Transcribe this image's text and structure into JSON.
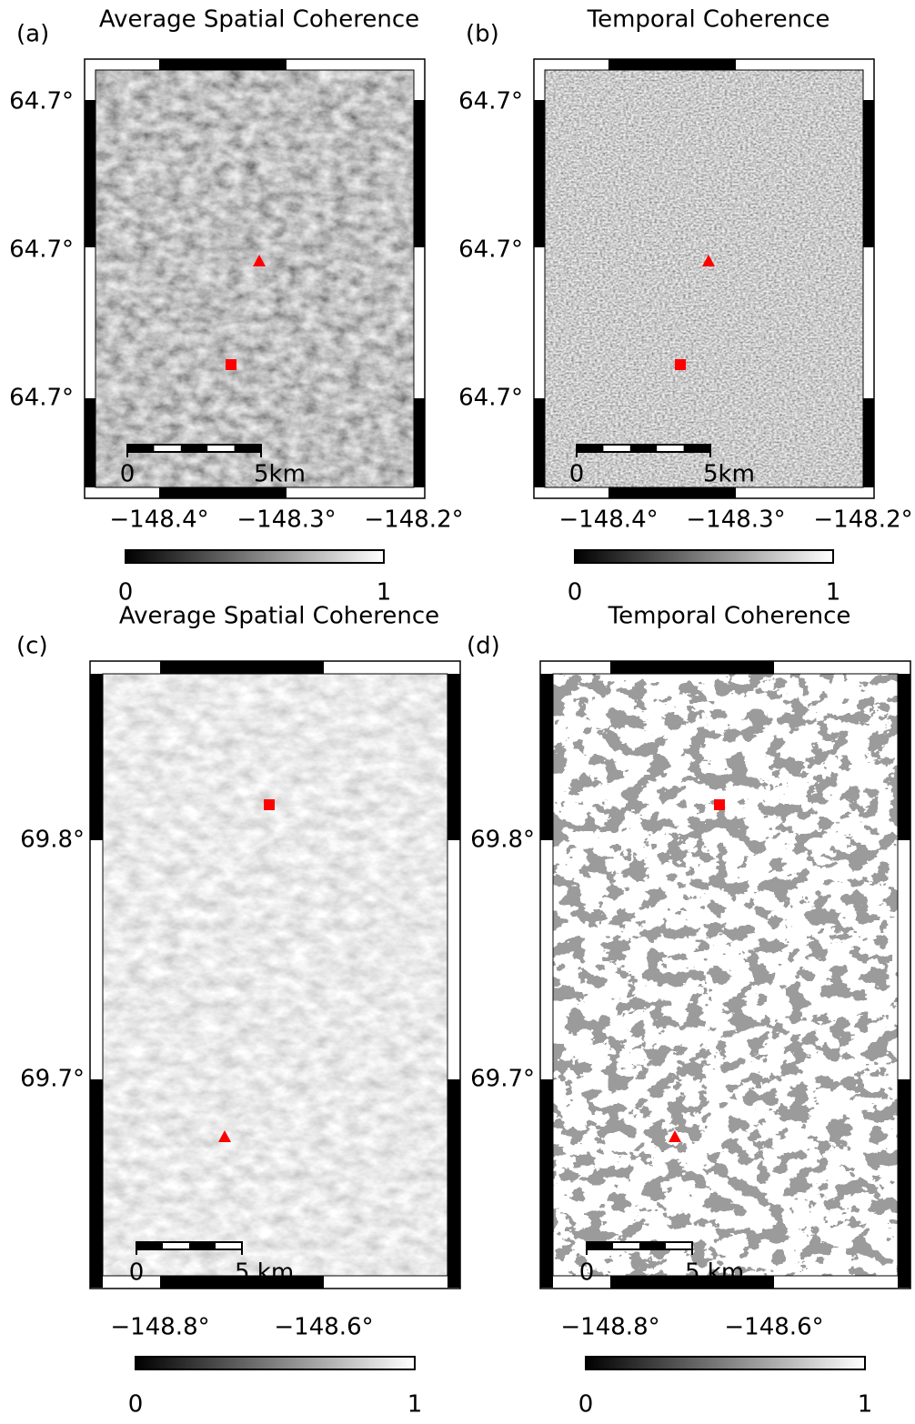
{
  "panels": [
    {
      "label": "(a)",
      "title": "Average Spatial Coherence",
      "lat_ticks": [
        "64.7°",
        "64.7°",
        "64.7°"
      ],
      "lon_ticks": [
        "−148.4°",
        "−148.3°",
        "−148.2°"
      ],
      "scalebar_labels": [
        "0",
        "5km"
      ],
      "colorbar_labels": [
        "0",
        "1"
      ]
    },
    {
      "label": "(b)",
      "title": "Temporal Coherence",
      "lat_ticks": [
        "64.7°",
        "64.7°",
        "64.7°"
      ],
      "lon_ticks": [
        "−148.4°",
        "−148.3°",
        "−148.2°"
      ],
      "scalebar_labels": [
        "0",
        "5km"
      ],
      "colorbar_labels": [
        "0",
        "1"
      ]
    },
    {
      "label": "(c)",
      "title": "Average Spatial Coherence",
      "lat_ticks": [
        "69.8°",
        "69.7°"
      ],
      "lon_ticks": [
        "−148.8°",
        "−148.6°"
      ],
      "scalebar_labels": [
        "0",
        "5 km"
      ],
      "colorbar_labels": [
        "0",
        "1"
      ]
    },
    {
      "label": "(d)",
      "title": "Temporal Coherence",
      "lat_ticks": [
        "69.8°",
        "69.7°"
      ],
      "lon_ticks": [
        "−148.8°",
        "−148.6°"
      ],
      "scalebar_labels": [
        "0",
        "5 km"
      ],
      "colorbar_labels": [
        "0",
        "1"
      ]
    }
  ]
}
